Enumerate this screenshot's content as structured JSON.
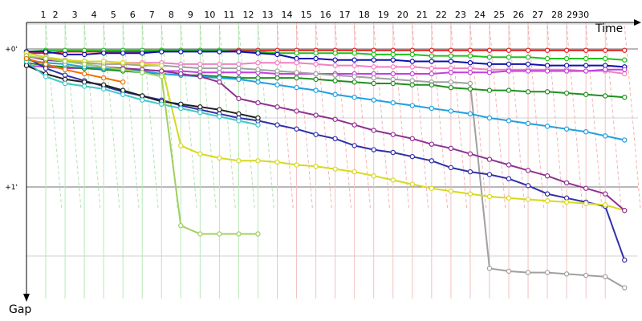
{
  "chart_data": {
    "type": "line",
    "title": "",
    "xlabel": "Time",
    "ylabel": "Gap",
    "x_tick_labels": [
      "1",
      "2",
      "3",
      "4",
      "5",
      "6",
      "7",
      "8",
      "9",
      "10",
      "11",
      "12",
      "13",
      "14",
      "15",
      "16",
      "17",
      "18",
      "19",
      "20",
      "21",
      "22",
      "23",
      "24",
      "25",
      "26",
      "27",
      "28",
      "2930"
    ],
    "y_tick_labels": [
      "+0'",
      "+1'"
    ],
    "y_ticks": [
      0,
      1
    ],
    "ylim": [
      -0.2,
      1.8
    ],
    "xlim": [
      0,
      32.6
    ],
    "x_axis_position": "top",
    "y_axis_direction": "down",
    "grid": true,
    "legend": "none",
    "series": [
      {
        "color": "#e02020",
        "x": [
          0,
          1,
          2,
          3,
          4,
          5,
          6,
          7,
          8,
          9,
          10,
          11,
          12,
          13,
          14,
          15,
          16,
          17,
          18,
          19,
          20,
          21,
          22,
          23,
          24,
          25,
          26,
          27,
          28,
          29,
          30,
          31
        ],
        "y": [
          0.03,
          0.03,
          0.02,
          0.02,
          0.02,
          0.02,
          0.02,
          0.01,
          0.01,
          0.01,
          0.01,
          0.01,
          0.01,
          0.01,
          0.01,
          0.01,
          0.01,
          0.01,
          0.01,
          0.01,
          0.01,
          0.01,
          0.01,
          0.01,
          0.01,
          0.01,
          0.01,
          0.01,
          0.01,
          0.01,
          0.01,
          0.01
        ]
      },
      {
        "color": "#20c020",
        "x": [
          0,
          1,
          2,
          3,
          4,
          5,
          6,
          7,
          8,
          9,
          10,
          11,
          12,
          13,
          14,
          15,
          16,
          17,
          18,
          19,
          20,
          21,
          22,
          23,
          24,
          25,
          26,
          27,
          28,
          29,
          30,
          31
        ],
        "y": [
          0.02,
          0.01,
          0.01,
          0.01,
          0.01,
          0.01,
          0.01,
          0.01,
          0.01,
          0.01,
          0.01,
          0.02,
          0.02,
          0.03,
          0.03,
          0.03,
          0.03,
          0.03,
          0.04,
          0.04,
          0.04,
          0.05,
          0.05,
          0.05,
          0.06,
          0.06,
          0.06,
          0.07,
          0.07,
          0.07,
          0.07,
          0.08
        ]
      },
      {
        "color": "#1010b0",
        "x": [
          0,
          1,
          2,
          3,
          4,
          5,
          6,
          7,
          8,
          9,
          10,
          11,
          12,
          13,
          14,
          15,
          16,
          17,
          18,
          19,
          20,
          21,
          22,
          23,
          24,
          25,
          26,
          27,
          28,
          29,
          30,
          31
        ],
        "y": [
          0.02,
          0.02,
          0.04,
          0.04,
          0.03,
          0.03,
          0.03,
          0.02,
          0.02,
          0.02,
          0.02,
          0.02,
          0.03,
          0.04,
          0.07,
          0.07,
          0.08,
          0.08,
          0.08,
          0.08,
          0.09,
          0.09,
          0.09,
          0.1,
          0.11,
          0.11,
          0.11,
          0.12,
          0.12,
          0.12,
          0.12,
          0.13
        ]
      },
      {
        "color": "#f080c0",
        "x": [
          0,
          1,
          2,
          3,
          4,
          5,
          6,
          7,
          8,
          9,
          10,
          11,
          12,
          13,
          14,
          15,
          16,
          17,
          18,
          19,
          20,
          21,
          22,
          23,
          24,
          25,
          26,
          27,
          28,
          29,
          30,
          31
        ],
        "y": [
          0.03,
          0.06,
          0.08,
          0.09,
          0.09,
          0.1,
          0.1,
          0.1,
          0.11,
          0.11,
          0.11,
          0.11,
          0.1,
          0.1,
          0.1,
          0.11,
          0.12,
          0.12,
          0.13,
          0.13,
          0.13,
          0.14,
          0.14,
          0.14,
          0.15,
          0.15,
          0.15,
          0.15,
          0.15,
          0.16,
          0.16,
          0.18
        ]
      },
      {
        "color": "#c040e0",
        "x": [
          0,
          1,
          2,
          3,
          4,
          5,
          6,
          7,
          8,
          9,
          10,
          11,
          12,
          13,
          14,
          15,
          16,
          17,
          18,
          19,
          20,
          21,
          22,
          23,
          24,
          25,
          26,
          27,
          28,
          29,
          30,
          31
        ],
        "y": [
          0.12,
          0.13,
          0.14,
          0.14,
          0.14,
          0.14,
          0.15,
          0.16,
          0.16,
          0.17,
          0.17,
          0.17,
          0.17,
          0.18,
          0.18,
          0.18,
          0.18,
          0.18,
          0.18,
          0.18,
          0.18,
          0.18,
          0.17,
          0.17,
          0.17,
          0.16,
          0.16,
          0.16,
          0.16,
          0.16,
          0.15,
          0.15
        ]
      },
      {
        "color": "#a0a0a0",
        "x": [
          0,
          1,
          2,
          3,
          4,
          5,
          6,
          7,
          8,
          9,
          10,
          11,
          12,
          13,
          14,
          15,
          16,
          17,
          18,
          19,
          20,
          21,
          22,
          23,
          24,
          25,
          26,
          27,
          28,
          29,
          30,
          31
        ],
        "y": [
          0.05,
          0.08,
          0.09,
          0.1,
          0.11,
          0.11,
          0.12,
          0.12,
          0.13,
          0.14,
          0.14,
          0.14,
          0.15,
          0.16,
          0.17,
          0.18,
          0.19,
          0.2,
          0.21,
          0.22,
          0.23,
          0.24,
          0.24,
          0.25,
          1.59,
          1.61,
          1.62,
          1.62,
          1.63,
          1.64,
          1.65,
          1.73
        ]
      },
      {
        "color": "#209020",
        "x": [
          0,
          1,
          2,
          3,
          4,
          5,
          6,
          7,
          8,
          9,
          10,
          11,
          12,
          13,
          14,
          15,
          16,
          17,
          18,
          19,
          20,
          21,
          22,
          23,
          24,
          25,
          26,
          27,
          28,
          29,
          30,
          31
        ],
        "y": [
          0.1,
          0.12,
          0.13,
          0.14,
          0.15,
          0.16,
          0.17,
          0.18,
          0.19,
          0.19,
          0.2,
          0.21,
          0.21,
          0.21,
          0.21,
          0.22,
          0.23,
          0.24,
          0.25,
          0.25,
          0.26,
          0.26,
          0.28,
          0.29,
          0.3,
          0.3,
          0.31,
          0.31,
          0.32,
          0.33,
          0.34,
          0.35
        ]
      },
      {
        "color": "#20a0e0",
        "x": [
          0,
          1,
          2,
          3,
          4,
          5,
          6,
          7,
          8,
          9,
          10,
          11,
          12,
          13,
          14,
          15,
          16,
          17,
          18,
          19,
          20,
          21,
          22,
          23,
          24,
          25,
          26,
          27,
          28,
          29,
          30,
          31
        ],
        "y": [
          0.08,
          0.1,
          0.11,
          0.13,
          0.14,
          0.15,
          0.16,
          0.18,
          0.19,
          0.2,
          0.21,
          0.22,
          0.24,
          0.26,
          0.28,
          0.3,
          0.33,
          0.35,
          0.37,
          0.39,
          0.41,
          0.43,
          0.45,
          0.47,
          0.5,
          0.52,
          0.54,
          0.56,
          0.58,
          0.6,
          0.63,
          0.66
        ]
      },
      {
        "color": "#3030a8",
        "x": [
          0,
          1,
          2,
          3,
          4,
          5,
          6,
          7,
          8,
          9,
          10,
          11,
          12,
          13,
          14,
          15,
          16,
          17,
          18,
          19,
          20,
          21,
          22,
          23,
          24,
          25,
          26,
          27,
          28,
          29,
          30,
          31
        ],
        "y": [
          0.06,
          0.14,
          0.19,
          0.23,
          0.27,
          0.31,
          0.34,
          0.37,
          0.41,
          0.44,
          0.47,
          0.5,
          0.52,
          0.55,
          0.58,
          0.62,
          0.65,
          0.7,
          0.73,
          0.75,
          0.78,
          0.81,
          0.86,
          0.89,
          0.91,
          0.94,
          0.99,
          1.05,
          1.08,
          1.11,
          1.14,
          1.53
        ]
      },
      {
        "color": "#d8d820",
        "x": [
          0,
          1,
          2,
          3,
          4,
          5,
          6,
          7,
          8,
          9,
          10,
          11,
          12,
          13,
          14,
          15,
          16,
          17,
          18,
          19,
          20,
          21,
          22,
          23,
          24,
          25,
          26,
          27,
          28,
          29,
          30,
          31
        ],
        "y": [
          0.03,
          0.06,
          0.08,
          0.09,
          0.09,
          0.1,
          0.11,
          0.12,
          0.7,
          0.76,
          0.79,
          0.81,
          0.81,
          0.82,
          0.84,
          0.85,
          0.87,
          0.89,
          0.92,
          0.95,
          0.98,
          1.01,
          1.03,
          1.05,
          1.07,
          1.08,
          1.09,
          1.1,
          1.11,
          1.12,
          1.13,
          1.17
        ]
      },
      {
        "color": "#903090",
        "x": [
          0,
          1,
          2,
          3,
          4,
          5,
          6,
          7,
          8,
          9,
          10,
          11,
          12,
          13,
          14,
          15,
          16,
          17,
          18,
          19,
          20,
          21,
          22,
          23,
          24,
          25,
          26,
          27,
          28,
          29,
          30,
          31
        ],
        "y": [
          0.05,
          0.08,
          0.09,
          0.11,
          0.13,
          0.14,
          0.15,
          0.16,
          0.18,
          0.2,
          0.24,
          0.36,
          0.39,
          0.42,
          0.45,
          0.48,
          0.51,
          0.55,
          0.59,
          0.62,
          0.65,
          0.69,
          0.72,
          0.76,
          0.8,
          0.84,
          0.88,
          0.92,
          0.97,
          1.01,
          1.05,
          1.17
        ]
      },
      {
        "color": "#202020",
        "x": [
          0,
          1,
          2,
          3,
          4,
          5,
          6,
          7,
          8,
          9,
          10,
          11,
          12
        ],
        "y": [
          0.12,
          0.18,
          0.22,
          0.24,
          0.26,
          0.3,
          0.34,
          0.38,
          0.4,
          0.42,
          0.44,
          0.47,
          0.5
        ]
      },
      {
        "color": "#40c8c8",
        "x": [
          0,
          1,
          2,
          3,
          4,
          5,
          6,
          7,
          8,
          9,
          10,
          11,
          12
        ],
        "y": [
          0.09,
          0.2,
          0.25,
          0.27,
          0.29,
          0.33,
          0.37,
          0.4,
          0.43,
          0.46,
          0.49,
          0.52,
          0.55
        ]
      },
      {
        "color": "#a0d060",
        "x": [
          0,
          1,
          2,
          3,
          4,
          5,
          6,
          7,
          8,
          9,
          10,
          11,
          12
        ],
        "y": [
          0.05,
          0.07,
          0.09,
          0.11,
          0.13,
          0.15,
          0.17,
          0.2,
          1.28,
          1.34,
          1.34,
          1.34,
          1.34
        ]
      },
      {
        "color": "#f07000",
        "x": [
          0,
          1,
          2,
          3,
          4,
          5
        ],
        "y": [
          0.07,
          0.11,
          0.15,
          0.18,
          0.21,
          0.24
        ]
      }
    ]
  }
}
